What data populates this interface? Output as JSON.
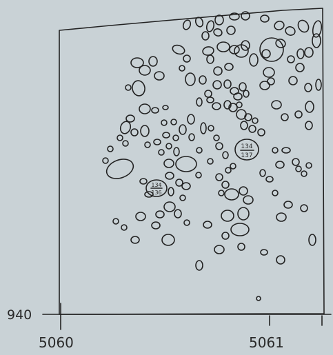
{
  "grid_labels": {
    "y_left": "940",
    "x_left": "5060",
    "x_right": "5061"
  },
  "find_labels": [
    {
      "top": "134",
      "bottom": "137"
    },
    {
      "top": "134",
      "bottom": "136"
    }
  ]
}
